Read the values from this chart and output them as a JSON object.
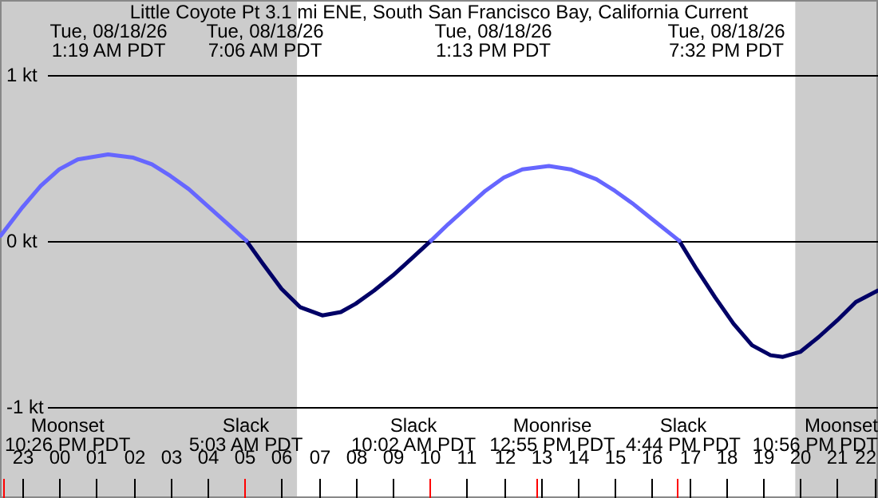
{
  "chart_data": {
    "type": "line",
    "title": "Little Coyote Pt 3.1 mi ENE, South San Francisco Bay, California Current",
    "xlim": [
      "--08-17T22:24",
      "--08-18T22:06"
    ],
    "xticks": [
      {
        "value": "--08-17T23:00",
        "label": "23"
      },
      {
        "value": "--08-18T00:00",
        "label": "00"
      },
      {
        "value": "--08-18T01:00",
        "label": "01"
      },
      {
        "value": "--08-18T02:00",
        "label": "02"
      },
      {
        "value": "--08-18T03:00",
        "label": "03"
      },
      {
        "value": "--08-18T04:00",
        "label": "04"
      },
      {
        "value": "--08-18T05:00",
        "label": "05"
      },
      {
        "value": "--08-18T06:00",
        "label": "06"
      },
      {
        "value": "--08-18T07:00",
        "label": "07"
      },
      {
        "value": "--08-18T08:00",
        "label": "08"
      },
      {
        "value": "--08-18T09:00",
        "label": "09"
      },
      {
        "value": "--08-18T10:00",
        "label": "10"
      },
      {
        "value": "--08-18T11:00",
        "label": "11"
      },
      {
        "value": "--08-18T12:00",
        "label": "12"
      },
      {
        "value": "--08-18T13:00",
        "label": "13"
      },
      {
        "value": "--08-18T14:00",
        "label": "14"
      },
      {
        "value": "--08-18T15:00",
        "label": "15"
      },
      {
        "value": "--08-18T16:00",
        "label": "16"
      },
      {
        "value": "--08-18T17:00",
        "label": "17"
      },
      {
        "value": "--08-18T18:00",
        "label": "18"
      },
      {
        "value": "--08-18T19:00",
        "label": "19"
      },
      {
        "value": "--08-18T20:00",
        "label": "20"
      },
      {
        "value": "--08-18T21:00",
        "label": "21"
      },
      {
        "value": "--08-18T22:00",
        "label": "22"
      }
    ],
    "ylim": [
      -1.55,
      1.45
    ],
    "yticks": [
      {
        "value": 1,
        "label": "1 kt"
      },
      {
        "value": 0,
        "label": "0 kt"
      },
      {
        "value": -1,
        "label": "-1 kt"
      }
    ],
    "grid": "y",
    "legend": false,
    "bands": [
      {
        "axis": "x",
        "from": "--08-17T22:24",
        "to": "--08-18T06:25",
        "color": "#cccccc"
      },
      {
        "axis": "x",
        "from": "--08-18T19:52",
        "to": "--08-18T22:06",
        "color": "#cccccc"
      }
    ],
    "series": [
      {
        "color": "#6666ff",
        "x": [
          "--08-17T22:25",
          "--08-17T23:00",
          "--08-17T23:30",
          "--08-18T00:00",
          "--08-18T00:30",
          "--08-18T01:19",
          "--08-18T02:00",
          "--08-18T02:30",
          "--08-18T03:00",
          "--08-18T03:30",
          "--08-18T04:00",
          "--08-18T04:30",
          "--08-18T05:03",
          "--08-18T07:06",
          "--08-18T10:02",
          "--08-18T10:30",
          "--08-18T11:00",
          "--08-18T11:30",
          "--08-18T12:00",
          "--08-18T12:30",
          "--08-18T13:13",
          "--08-18T13:48",
          "--08-18T14:30",
          "--08-18T15:00",
          "--08-18T15:30",
          "--08-18T16:00",
          "--08-18T16:44"
        ],
        "values": [
          0.03,
          0.2,
          0.33,
          0.43,
          0.49,
          0.52,
          0.5,
          0.46,
          0.39,
          0.31,
          0.21,
          0.11,
          0,
          null,
          0,
          0.1,
          0.2,
          0.3,
          0.38,
          0.43,
          0.45,
          0.43,
          0.37,
          0.3,
          0.22,
          0.13,
          0
        ]
      },
      {
        "color": "#000066",
        "x": [
          "--08-18T05:03",
          "--08-18T05:30",
          "--08-18T06:00",
          "--08-18T06:30",
          "--08-18T07:06",
          "--08-18T07:36",
          "--08-18T08:00",
          "--08-18T08:30",
          "--08-18T09:00",
          "--08-18T09:30",
          "--08-18T10:02",
          "--08-18T13:13",
          "--08-18T16:44",
          "--08-18T17:12",
          "--08-18T17:42",
          "--08-18T18:12",
          "--08-18T18:42",
          "--08-18T19:12",
          "--08-18T19:32",
          "--08-18T20:00",
          "--08-18T20:30",
          "--08-18T21:00",
          "--08-18T21:30",
          "--08-18T22:06"
        ],
        "values": [
          0,
          -0.14,
          -0.29,
          -0.4,
          -0.45,
          -0.43,
          -0.38,
          -0.3,
          -0.21,
          -0.11,
          0,
          null,
          0,
          -0.17,
          -0.34,
          -0.5,
          -0.63,
          -0.69,
          -0.7,
          -0.67,
          -0.58,
          -0.48,
          -0.37,
          -0.3
        ]
      }
    ],
    "annotations": [
      "Tue, 08/18/26\n1:19 AM PDT",
      "Tue, 08/18/26\n7:06 AM PDT",
      "Tue, 08/18/26\n1:13 PM PDT",
      "Tue, 08/18/26\n7:32 PM PDT",
      "Moonset\n10:26 PM PDT",
      "Slack\n5:03 AM PDT",
      "Slack\n10:02 AM PDT",
      "Moonrise\n12:55 PM PDT",
      "Slack\n4:44 PM PDT",
      "Moonset\n10:56 PM PDT"
    ]
  }
}
